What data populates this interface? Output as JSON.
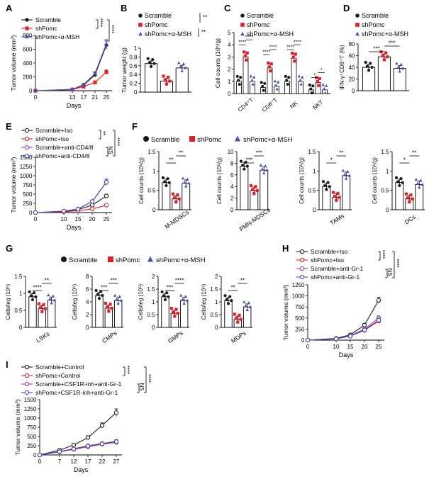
{
  "colors": {
    "scramble": "#1a1a1a",
    "shpomc": "#e41e26",
    "msh": "#3f51b5",
    "purple": "#8e44ad",
    "gray": "#444444"
  },
  "chart_data": [
    {
      "panel": "A",
      "type": "line",
      "xlabel": "Days",
      "ylabel": "Tumor volume (mm³)",
      "x": [
        0,
        13,
        17,
        21,
        25
      ],
      "xlim": [
        0,
        27
      ],
      "ylim": [
        0,
        800
      ],
      "yticks": [
        0,
        200,
        400,
        600,
        800
      ],
      "series": [
        {
          "name": "Scramble",
          "values": [
            0,
            20,
            80,
            230,
            660
          ],
          "err": [
            0,
            5,
            15,
            30,
            60
          ],
          "color": "#1a1a1a",
          "marker": "circle"
        },
        {
          "name": "shPomc",
          "values": [
            0,
            15,
            60,
            120,
            270
          ],
          "err": [
            0,
            5,
            10,
            20,
            30
          ],
          "color": "#e41e26",
          "marker": "square"
        },
        {
          "name": "shPomc+α-MSH",
          "values": [
            0,
            20,
            90,
            250,
            680
          ],
          "err": [
            0,
            5,
            15,
            30,
            60
          ],
          "color": "#3f51b5",
          "marker": "triangle"
        }
      ],
      "sig": [
        "****",
        "****"
      ]
    },
    {
      "panel": "B",
      "type": "bar",
      "ylabel": "Tumor weight (g)",
      "categories": [
        "Scramble",
        "shPomc",
        "shPomc+α-MSH"
      ],
      "values": [
        0.65,
        0.25,
        0.55
      ],
      "ylim": [
        0,
        1.0
      ],
      "yticks": [
        0,
        0.2,
        0.4,
        0.6,
        0.8,
        1.0
      ],
      "sig": [
        "**",
        "**"
      ]
    },
    {
      "panel": "C",
      "type": "bar",
      "ylabel": "Cell counts (10⁶/g)",
      "groups": [
        "CD4⁺T",
        "CD8⁺T",
        "NK",
        "NKT"
      ],
      "series": [
        {
          "name": "Scramble",
          "values": [
            1.0,
            0.5,
            1.0,
            0.3
          ]
        },
        {
          "name": "shPomc",
          "values": [
            3.0,
            2.1,
            2.9,
            0.9
          ]
        },
        {
          "name": "shPomc+α-MSH",
          "values": [
            1.0,
            0.6,
            1.0,
            0.3
          ]
        }
      ],
      "ylim": [
        0,
        5
      ],
      "yticks": [
        0,
        1,
        2,
        3,
        4,
        5
      ],
      "sig": [
        "****",
        "****",
        "****",
        "****",
        "****",
        "****",
        "*",
        "*"
      ]
    },
    {
      "panel": "D",
      "type": "bar",
      "ylabel": "IFN-γ⁺CD8⁺T (%)",
      "categories": [
        "Scramble",
        "shPomc",
        "shPomc+α-MSH"
      ],
      "values": [
        40,
        58,
        38
      ],
      "ylim": [
        0,
        80
      ],
      "yticks": [
        0,
        20,
        40,
        60,
        80
      ],
      "sig": [
        "***",
        "***"
      ]
    },
    {
      "panel": "E",
      "type": "line",
      "xlabel": "Days",
      "ylabel": "Tumor volume (mm³)",
      "x": [
        0,
        10,
        15,
        20,
        25
      ],
      "xlim": [
        0,
        27
      ],
      "ylim": [
        0,
        1500
      ],
      "yticks": [
        0,
        250,
        500,
        750,
        1000,
        1250,
        1500
      ],
      "series": [
        {
          "name": "Scramble+Iso",
          "values": [
            0,
            30,
            80,
            200,
            450
          ],
          "err": [
            0,
            5,
            10,
            25,
            50
          ],
          "color": "#1a1a1a",
          "marker": "open-circle"
        },
        {
          "name": "shPomc+Iso",
          "values": [
            0,
            20,
            50,
            100,
            200
          ],
          "err": [
            0,
            5,
            10,
            15,
            25
          ],
          "color": "#e41e26",
          "marker": "open-circle"
        },
        {
          "name": "Scramble+anti-CD4/8",
          "values": [
            0,
            40,
            100,
            300,
            830
          ],
          "err": [
            0,
            5,
            15,
            40,
            80
          ],
          "color": "#8e44ad",
          "marker": "open-circle"
        },
        {
          "name": "shPomc+anti-CD4/8",
          "values": [
            0,
            40,
            90,
            300,
            820
          ],
          "err": [
            0,
            5,
            15,
            40,
            80
          ],
          "color": "#3f51b5",
          "marker": "open-circle"
        }
      ],
      "sig": [
        "**",
        "****",
        "NS"
      ]
    },
    {
      "panel": "F",
      "type": "bar",
      "legend": [
        "Scramble",
        "shPomc",
        "shPomc+α-MSH"
      ],
      "subplots": [
        {
          "category": "M-MDSCs",
          "ylabel": "Cell counts (10⁵/g)",
          "values": [
            0.7,
            0.28,
            0.68
          ],
          "ylim": [
            0,
            1.5
          ],
          "yticks": [
            0,
            0.5,
            1.0,
            1.5
          ],
          "sig": [
            "**",
            "**"
          ]
        },
        {
          "category": "PMN-MDSCs",
          "ylabel": "Cell counts (10⁵/g)",
          "values": [
            7.5,
            3.3,
            6.8
          ],
          "ylim": [
            0,
            10
          ],
          "yticks": [
            0,
            2,
            4,
            6,
            8,
            10
          ],
          "sig": [
            "***",
            "***"
          ]
        },
        {
          "category": "TAMs",
          "ylabel": "Cell counts (10⁵/g)",
          "values": [
            0.6,
            0.32,
            0.88
          ],
          "ylim": [
            0,
            1.5
          ],
          "yticks": [
            0,
            0.5,
            1.0,
            1.5
          ],
          "sig": [
            "*",
            "**"
          ]
        },
        {
          "category": "DCs",
          "ylabel": "Cell counts (10⁵/g)",
          "values": [
            0.7,
            0.28,
            0.65
          ],
          "ylim": [
            0,
            1.5
          ],
          "yticks": [
            0,
            0.5,
            1.0,
            1.5
          ],
          "sig": [
            "*",
            "**"
          ]
        }
      ]
    },
    {
      "panel": "G",
      "type": "bar",
      "legend": [
        "Scramble",
        "shPomc",
        "shPomc+α-MSH"
      ],
      "subplots": [
        {
          "category": "LSKs",
          "ylabel": "Cells/leg (10⁵)",
          "values": [
            0.9,
            0.55,
            0.8
          ],
          "ylim": [
            0,
            1.5
          ],
          "yticks": [
            0,
            0.5,
            1.0,
            1.5
          ],
          "sig": [
            "****",
            "**"
          ]
        },
        {
          "category": "CMPs",
          "ylabel": "Cells/leg (10⁵)",
          "values": [
            5.0,
            3.0,
            4.2
          ],
          "ylim": [
            0,
            8
          ],
          "yticks": [
            0,
            2,
            4,
            6,
            8
          ],
          "sig": [
            "***",
            "***"
          ]
        },
        {
          "category": "GMPs",
          "ylabel": "Cells/leg (10⁵)",
          "values": [
            1.2,
            0.55,
            1.05
          ],
          "ylim": [
            0,
            2.0
          ],
          "yticks": [
            0,
            0.5,
            1.0,
            1.5,
            2.0
          ],
          "sig": [
            "***",
            "****"
          ]
        },
        {
          "category": "MDPs",
          "ylabel": "Cells/leg (10⁴)",
          "values": [
            1.05,
            0.32,
            0.8
          ],
          "ylim": [
            0,
            2.0
          ],
          "yticks": [
            0,
            0.5,
            1.0,
            1.5,
            2.0
          ],
          "sig": [
            "**",
            "**"
          ]
        }
      ]
    },
    {
      "panel": "H",
      "type": "line",
      "xlabel": "Days",
      "ylabel": "Tumor volume (mm³)",
      "x": [
        0,
        10,
        15,
        20,
        25
      ],
      "xlim": [
        0,
        27
      ],
      "ylim": [
        0,
        1250
      ],
      "yticks": [
        0,
        250,
        500,
        750,
        1000,
        1250
      ],
      "series": [
        {
          "name": "Scramble+Iso",
          "values": [
            0,
            40,
            120,
            340,
            900
          ],
          "err": [
            0,
            5,
            15,
            40,
            70
          ],
          "color": "#1a1a1a",
          "marker": "open-circle"
        },
        {
          "name": "shPomc+Iso",
          "values": [
            0,
            30,
            90,
            220,
            430
          ],
          "err": [
            0,
            5,
            10,
            25,
            50
          ],
          "color": "#e41e26",
          "marker": "open-circle"
        },
        {
          "name": "Scramble+anti-Gr-1",
          "values": [
            0,
            30,
            100,
            250,
            500
          ],
          "err": [
            0,
            5,
            10,
            25,
            50
          ],
          "color": "#8e44ad",
          "marker": "open-circle"
        },
        {
          "name": "shPomc+anti-Gr-1",
          "values": [
            0,
            30,
            90,
            230,
            450
          ],
          "err": [
            0,
            5,
            10,
            25,
            50
          ],
          "color": "#3f51b5",
          "marker": "open-circle"
        }
      ],
      "sig": [
        "****",
        "****",
        "NS"
      ]
    },
    {
      "panel": "I",
      "type": "line",
      "xlabel": "Days",
      "ylabel": "Tumor volume (mm³)",
      "x": [
        0,
        7,
        12,
        17,
        22,
        27
      ],
      "xlim": [
        0,
        29
      ],
      "ylim": [
        0,
        1500
      ],
      "yticks": [
        0,
        250,
        500,
        750,
        1000,
        1250,
        1500
      ],
      "series": [
        {
          "name": "Scramble+Control",
          "values": [
            0,
            130,
            270,
            470,
            800,
            1150
          ],
          "err": [
            0,
            15,
            30,
            50,
            70,
            100
          ],
          "color": "#1a1a1a",
          "marker": "open-circle"
        },
        {
          "name": "shPomc+Control",
          "values": [
            0,
            90,
            170,
            250,
            310,
            370
          ],
          "err": [
            0,
            10,
            20,
            30,
            35,
            40
          ],
          "color": "#e41e26",
          "marker": "open-circle"
        },
        {
          "name": "Scramble+CSF1R-inh+anti-Gr-1",
          "values": [
            0,
            80,
            150,
            220,
            290,
            340
          ],
          "err": [
            0,
            10,
            20,
            25,
            30,
            35
          ],
          "color": "#8e44ad",
          "marker": "open-circle"
        },
        {
          "name": "shPomc+CSF1R-inh+anti-Gr-1",
          "values": [
            0,
            90,
            160,
            240,
            300,
            360
          ],
          "err": [
            0,
            10,
            20,
            25,
            30,
            35
          ],
          "color": "#3f51b5",
          "marker": "open-circle"
        }
      ],
      "sig": [
        "****",
        "****",
        "NS"
      ]
    }
  ]
}
